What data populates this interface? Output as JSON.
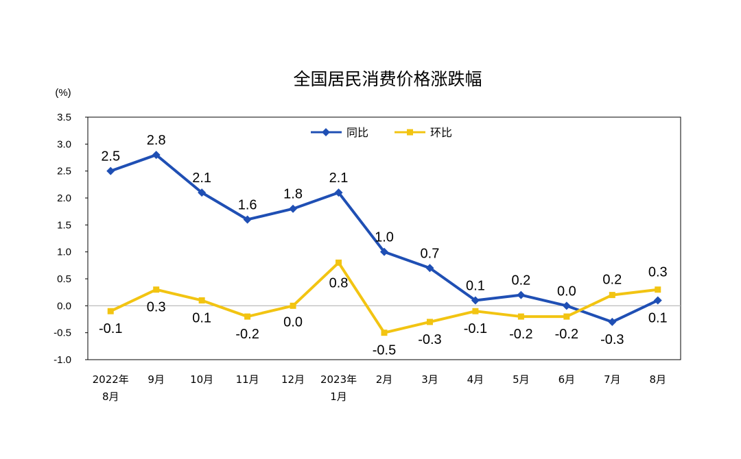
{
  "chart_data": {
    "type": "line",
    "title": "全国居民消费价格涨跌幅",
    "yunit": "(%)",
    "ylim": [
      -1.0,
      3.5
    ],
    "yticks": [
      "3.5",
      "3.0",
      "2.5",
      "2.0",
      "1.5",
      "1.0",
      "0.5",
      "0.0",
      "-0.5",
      "-1.0"
    ],
    "ytick_values": [
      3.5,
      3.0,
      2.5,
      2.0,
      1.5,
      1.0,
      0.5,
      0.0,
      -0.5,
      -1.0
    ],
    "categories": [
      [
        "2022年",
        "8月"
      ],
      [
        "9月"
      ],
      [
        "10月"
      ],
      [
        "11月"
      ],
      [
        "12月"
      ],
      [
        "2023年",
        "1月"
      ],
      [
        "2月"
      ],
      [
        "3月"
      ],
      [
        "4月"
      ],
      [
        "5月"
      ],
      [
        "6月"
      ],
      [
        "7月"
      ],
      [
        "8月"
      ]
    ],
    "legend_position": "top-center",
    "series": [
      {
        "name": "同比",
        "color": "#1f4fb4",
        "marker": "diamond",
        "values": [
          2.5,
          2.8,
          2.1,
          1.6,
          1.8,
          2.1,
          1.0,
          0.7,
          0.1,
          0.2,
          0.0,
          -0.3,
          0.1
        ],
        "labels": [
          "2.5",
          "2.8",
          "2.1",
          "1.6",
          "1.8",
          "2.1",
          "1.0",
          "0.7",
          "0.1",
          "0.2",
          "0.0",
          "-0.3",
          "0.1"
        ]
      },
      {
        "name": "环比",
        "color": "#f2c412",
        "marker": "square",
        "values": [
          -0.1,
          0.3,
          0.1,
          -0.2,
          0.0,
          0.8,
          -0.5,
          -0.3,
          -0.1,
          -0.2,
          -0.2,
          0.2,
          0.3
        ],
        "labels": [
          "-0.1",
          "0.3",
          "0.1",
          "-0.2",
          "0.0",
          "0.8",
          "-0.5",
          "-0.3",
          "-0.1",
          "-0.2",
          "-0.2",
          "0.2",
          "0.3"
        ]
      }
    ]
  }
}
